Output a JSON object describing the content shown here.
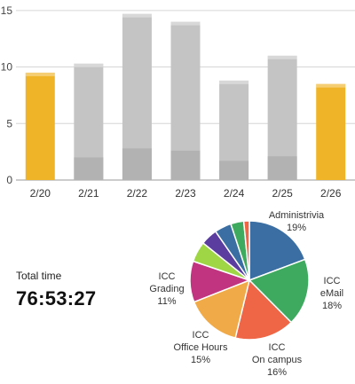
{
  "chart_data": [
    {
      "type": "bar",
      "categories": [
        "2/20",
        "2/21",
        "2/22",
        "2/23",
        "2/24",
        "2/25",
        "2/26"
      ],
      "series": [
        {
          "values": [
            9.5,
            10.3,
            14.7,
            14.0,
            8.8,
            11.0,
            8.5
          ]
        }
      ],
      "lower_segment_values": [
        0,
        2.0,
        2.8,
        2.6,
        1.7,
        2.1,
        0
      ],
      "highlighted_categories": [
        "2/20",
        "2/26"
      ],
      "yticks": [
        0,
        5,
        10,
        15
      ],
      "ylim": [
        0,
        15.3
      ],
      "grid": true,
      "title": "",
      "xlabel": "",
      "ylabel": "",
      "colors": {
        "default": "#c4c4c4",
        "default_lower": "#b2b2b2",
        "highlight": "#f0b429",
        "highlight_lower": "#e8a413"
      }
    },
    {
      "type": "pie",
      "slices": [
        {
          "label": "Administrivia",
          "value": 19,
          "pct_label": "19%",
          "color": "#3b6fa3"
        },
        {
          "label": "ICC eMail",
          "value": 18,
          "pct_label": "18%",
          "color": "#3daa5f"
        },
        {
          "label": "ICC On campus",
          "value": 16,
          "pct_label": "16%",
          "color": "#ee6646"
        },
        {
          "label": "ICC Office Hours",
          "value": 15,
          "pct_label": "15%",
          "color": "#f0aa48"
        },
        {
          "label": "ICC Grading",
          "value": 11,
          "pct_label": "11%",
          "color": "#c1347f"
        },
        {
          "label": "",
          "value": 5.5,
          "pct_label": "",
          "color": "#9fd646"
        },
        {
          "label": "",
          "value": 4.5,
          "pct_label": "",
          "color": "#5b3d9f"
        },
        {
          "label": "",
          "value": 4.5,
          "pct_label": "",
          "color": "#3b6fa3"
        },
        {
          "label": "",
          "value": 3.5,
          "pct_label": "",
          "color": "#3daa5f"
        },
        {
          "label": "",
          "value": 1.5,
          "pct_label": "",
          "color": "#ee6646"
        }
      ],
      "labels": [
        {
          "lines": [
            "Administrivia",
            "19%"
          ]
        },
        {
          "lines": [
            "ICC",
            "eMail",
            "18%"
          ]
        },
        {
          "lines": [
            "ICC",
            "On campus",
            "16%"
          ]
        },
        {
          "lines": [
            "ICC",
            "Office Hours",
            "15%"
          ]
        },
        {
          "lines": [
            "ICC",
            "Grading",
            "11%"
          ]
        }
      ]
    }
  ],
  "summary": {
    "total_label": "Total time",
    "total_value": "76:53:27"
  }
}
